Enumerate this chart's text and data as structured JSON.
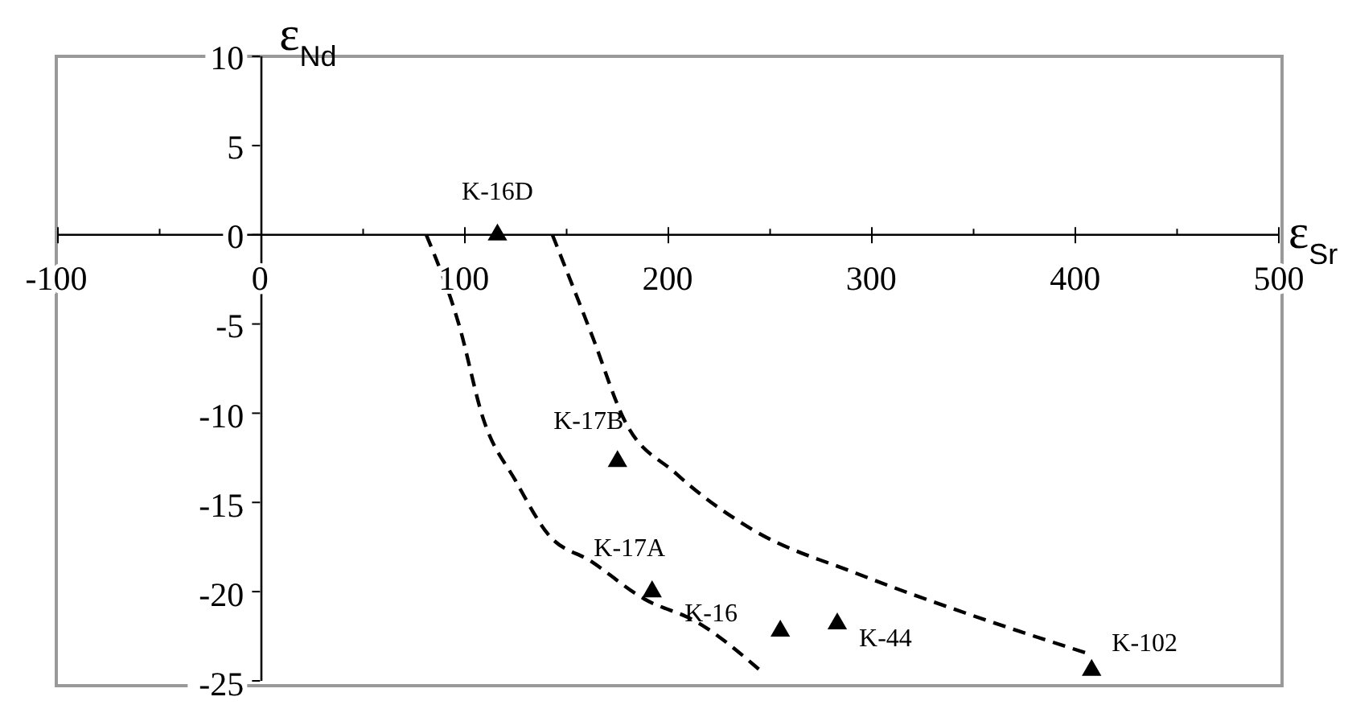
{
  "chart_data": {
    "type": "scatter",
    "xlabel": "ε$_{Sr}$",
    "ylabel": "ε$_{Nd}$",
    "xlim": [
      -100,
      500
    ],
    "xticks": [
      -100,
      {
        "value": -50,
        "label": null
      },
      0,
      {
        "value": 50,
        "label": null
      },
      100,
      {
        "value": 150,
        "label": null
      },
      200,
      {
        "value": 250,
        "label": null
      },
      300,
      {
        "value": 350,
        "label": null
      },
      400,
      {
        "value": 450,
        "label": null
      },
      500
    ],
    "ylim": [
      -25,
      10
    ],
    "yticks": [
      -25,
      -20,
      -15,
      -10,
      -5,
      0,
      5,
      10
    ],
    "grid": false,
    "legend": false,
    "series": [
      {
        "type": "scatter",
        "color": "#000000",
        "marker": "triangle",
        "x": [
          116,
          175,
          192,
          255,
          283,
          408
        ],
        "values": [
          0,
          -12.7,
          -20,
          -22.2,
          -21.8,
          -24.4
        ]
      },
      {
        "type": "line",
        "color": "#000000",
        "line_style": "dashed",
        "marker": "none",
        "x": [
          81,
          97,
          109,
          125,
          141,
          162,
          188,
          214,
          246
        ],
        "values": [
          0,
          -5,
          -10.3,
          -13.8,
          -16.8,
          -18.3,
          -20.4,
          -21.7,
          -24.5
        ]
      },
      {
        "type": "line",
        "color": "#000000",
        "line_style": "dashed",
        "marker": "none",
        "x": [
          143,
          163,
          178,
          204,
          241,
          293,
          346,
          407
        ],
        "values": [
          0,
          -5.8,
          -10.3,
          -13.4,
          -16.5,
          -19,
          -21.2,
          -23.5
        ]
      }
    ],
    "annotations": [
      {
        "text": "K-16D",
        "x": 116,
        "y": 0
      },
      {
        "text": "K-17B",
        "x": 175,
        "y": -12.7
      },
      {
        "text": "K-17A",
        "x": 192,
        "y": -20
      },
      {
        "text": "K-16",
        "x": 255,
        "y": -22.2
      },
      {
        "text": "K-44",
        "x": 283,
        "y": -21.8
      },
      {
        "text": "K-102",
        "x": 408,
        "y": -24.4
      }
    ]
  }
}
